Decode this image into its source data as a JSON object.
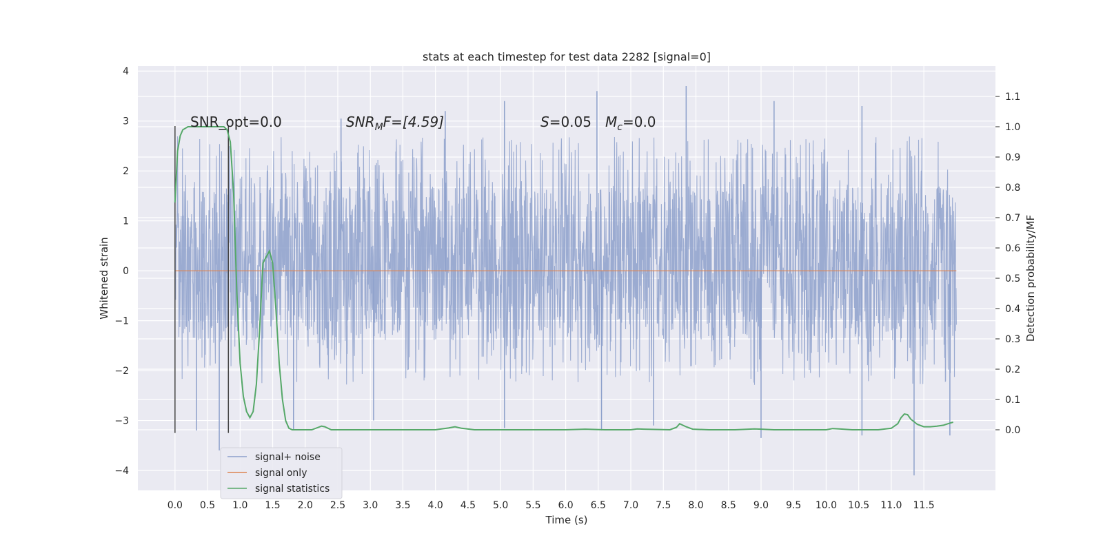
{
  "chart_data": {
    "type": "line",
    "title": "stats at each timestep for test data 2282 [signal=0]",
    "xlabel": "Time (s)",
    "ylabel": "Whitened strain",
    "y2label": "Detection probability/MF",
    "xlim": [
      -0.57,
      12.6
    ],
    "ylim": [
      -4.4,
      4.1
    ],
    "y2lim": [
      -0.2,
      1.2
    ],
    "xticks": [
      0.0,
      0.5,
      1.0,
      1.5,
      2.0,
      2.5,
      3.0,
      3.5,
      4.0,
      4.5,
      5.0,
      5.5,
      6.0,
      6.5,
      7.0,
      7.5,
      8.0,
      8.5,
      9.0,
      9.5,
      10.0,
      10.5,
      11.0,
      11.5
    ],
    "xtick_labels": [
      "0.0",
      "0.5",
      "1.0",
      "1.5",
      "2.0",
      "2.5",
      "3.0",
      "3.5",
      "4.0",
      "4.5",
      "5.0",
      "5.5",
      "6.0",
      "6.5",
      "7.0",
      "7.5",
      "8.0",
      "8.5",
      "9.0",
      "9.5",
      "10.0",
      "10.5",
      "11.0",
      "11.5"
    ],
    "yticks": [
      -4,
      -3,
      -2,
      -1,
      0,
      1,
      2,
      3,
      4
    ],
    "ytick_labels": [
      "−4",
      "−3",
      "−2",
      "−1",
      "0",
      "1",
      "2",
      "3",
      "4"
    ],
    "y2ticks": [
      0.0,
      0.1,
      0.2,
      0.3,
      0.4,
      0.5,
      0.6,
      0.7,
      0.8,
      0.9,
      1.0,
      1.1
    ],
    "y2tick_labels": [
      "0.0",
      "0.1",
      "0.2",
      "0.3",
      "0.4",
      "0.5",
      "0.6",
      "0.7",
      "0.8",
      "0.9",
      "1.0",
      "1.1"
    ],
    "grid": true,
    "legend_position": "bottom-left",
    "vlines": [
      {
        "x": 0.0,
        "ymin": -3.25,
        "ymax": 2.9
      },
      {
        "x": 0.82,
        "ymin": -3.25,
        "ymax": 2.9
      }
    ],
    "annotations": {
      "snr_opt": "SNR_opt=0.0",
      "snr_mf_label": "SNR",
      "snr_mf_sub": "M",
      "snr_mf_rest": "F=[4.59]",
      "s_label": "S",
      "s_value": "=0.05",
      "mc_label": "M",
      "mc_sub": "c",
      "mc_value": "=0.0"
    },
    "series": [
      {
        "name": "signal+ noise",
        "color": "#8da0cb",
        "axis": "left",
        "kind": "noise",
        "x_range": [
          0.0,
          12.0
        ],
        "typical_band": [
          -1.4,
          1.7
        ],
        "spikes": [
          {
            "x": 6.48,
            "y": 3.6
          },
          {
            "x": 7.85,
            "y": 3.7
          },
          {
            "x": 2.55,
            "y": 3.05
          },
          {
            "x": 4.15,
            "y": 3.2
          },
          {
            "x": 5.06,
            "y": 3.4
          },
          {
            "x": 9.2,
            "y": 3.4
          },
          {
            "x": 10.55,
            "y": 3.3
          },
          {
            "x": 11.35,
            "y": -4.1
          },
          {
            "x": 1.82,
            "y": -3.2
          },
          {
            "x": 0.68,
            "y": -3.6
          },
          {
            "x": 5.06,
            "y": -3.15
          },
          {
            "x": 6.55,
            "y": -3.2
          },
          {
            "x": 9.0,
            "y": -3.35
          },
          {
            "x": 10.55,
            "y": -3.3
          },
          {
            "x": 11.9,
            "y": -3.3
          },
          {
            "x": 7.35,
            "y": -3.1
          },
          {
            "x": 3.05,
            "y": -3.0
          },
          {
            "x": 0.33,
            "y": -3.2
          }
        ]
      },
      {
        "name": "signal only",
        "color": "#dd8452",
        "axis": "left",
        "x": [
          0.0,
          12.0
        ],
        "y": [
          0.0,
          0.0
        ]
      },
      {
        "name": "signal statistics",
        "color": "#55a868",
        "axis": "right",
        "x": [
          0.0,
          0.04,
          0.08,
          0.12,
          0.2,
          0.3,
          0.4,
          0.5,
          0.6,
          0.7,
          0.75,
          0.8,
          0.85,
          0.9,
          0.95,
          1.0,
          1.05,
          1.1,
          1.15,
          1.2,
          1.25,
          1.3,
          1.35,
          1.4,
          1.45,
          1.5,
          1.55,
          1.6,
          1.65,
          1.7,
          1.75,
          1.8,
          1.9,
          2.0,
          2.1,
          2.2,
          2.25,
          2.3,
          2.4,
          2.5,
          3.0,
          3.5,
          4.0,
          4.2,
          4.3,
          4.4,
          4.6,
          5.0,
          5.5,
          6.0,
          6.3,
          6.6,
          7.0,
          7.1,
          7.2,
          7.6,
          7.7,
          7.75,
          7.85,
          7.95,
          8.2,
          8.6,
          8.9,
          9.0,
          9.2,
          9.6,
          10.0,
          10.1,
          10.2,
          10.4,
          10.8,
          11.0,
          11.1,
          11.15,
          11.2,
          11.25,
          11.3,
          11.4,
          11.5,
          11.6,
          11.7,
          11.8,
          11.9,
          11.95
        ],
        "y": [
          0.75,
          0.92,
          0.97,
          0.99,
          1.0,
          1.0,
          1.0,
          1.0,
          1.0,
          1.0,
          1.0,
          0.99,
          0.95,
          0.78,
          0.45,
          0.22,
          0.11,
          0.06,
          0.04,
          0.06,
          0.15,
          0.33,
          0.55,
          0.57,
          0.59,
          0.55,
          0.4,
          0.22,
          0.1,
          0.03,
          0.005,
          0.0,
          0.0,
          0.0,
          0.0,
          0.008,
          0.012,
          0.01,
          0.0,
          0.0,
          0.0,
          0.0,
          0.0,
          0.006,
          0.01,
          0.005,
          0.0,
          0.0,
          0.0,
          0.0,
          0.002,
          0.0,
          0.0,
          0.003,
          0.002,
          0.0,
          0.008,
          0.02,
          0.01,
          0.002,
          0.0,
          0.0,
          0.003,
          0.002,
          0.0,
          0.0,
          0.0,
          0.004,
          0.003,
          0.0,
          0.0,
          0.005,
          0.02,
          0.04,
          0.052,
          0.05,
          0.035,
          0.018,
          0.01,
          0.01,
          0.012,
          0.015,
          0.022,
          0.025
        ]
      }
    ]
  }
}
